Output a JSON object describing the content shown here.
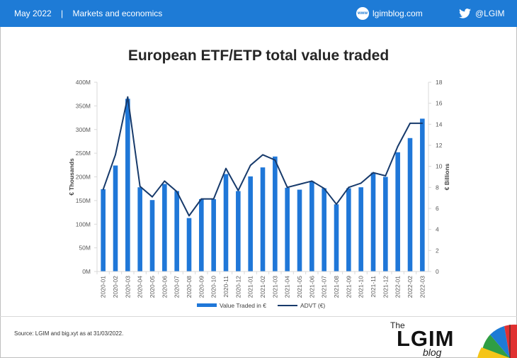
{
  "header": {
    "date": "May 2022",
    "separator": "|",
    "section": "Markets and economics",
    "blog_icon": "www",
    "blog": "lgimblog.com",
    "twitter": "@LGIM"
  },
  "footer": {
    "source": "Source: LGIM and big.xyt as at 31/03/2022.",
    "logo_the": "The",
    "logo_main": "LGIM",
    "logo_blog": "blog"
  },
  "colors": {
    "header": "#1e7bd6",
    "bars": "#1f77d8",
    "line": "#173a6b"
  },
  "chart_data": {
    "type": "bar",
    "title": "European ETF/ETP total value traded",
    "ylabel": "€ Thousands",
    "y2label": "€ Billions",
    "ylim": [
      0,
      400
    ],
    "y2lim": [
      0,
      18
    ],
    "yticks": [
      "0M",
      "50M",
      "100M",
      "150M",
      "200M",
      "250M",
      "300M",
      "350M",
      "400M"
    ],
    "y2ticks": [
      "0",
      "2",
      "4",
      "6",
      "8",
      "10",
      "12",
      "14",
      "16",
      "18"
    ],
    "categories": [
      "2020-01",
      "2020-02",
      "2020-03",
      "2020-04",
      "2020-05",
      "2020-06",
      "2020-07",
      "2020-08",
      "2020-09",
      "2020-10",
      "2020-11",
      "2020-12",
      "2021-01",
      "2021-02",
      "2021-03",
      "2021-04",
      "2021-05",
      "2021-06",
      "2021-07",
      "2021-08",
      "2021-09",
      "2021-10",
      "2021-11",
      "2021-12",
      "2022-01",
      "2022-02",
      "2022-03"
    ],
    "series": [
      {
        "name": "Value Traded in €",
        "kind": "bar",
        "axis": "left",
        "values": [
          174,
          224,
          365,
          178,
          151,
          185,
          170,
          113,
          153,
          153,
          206,
          170,
          201,
          220,
          243,
          177,
          173,
          191,
          176,
          142,
          176,
          178,
          209,
          200,
          252,
          282,
          323
        ]
      },
      {
        "name": "ADVT  (€)",
        "kind": "line",
        "axis": "right",
        "values": [
          7.8,
          11.1,
          16.6,
          8.1,
          7.1,
          8.6,
          7.6,
          5.3,
          6.9,
          6.9,
          9.8,
          7.7,
          10.1,
          11.1,
          10.6,
          8.0,
          8.3,
          8.6,
          7.9,
          6.4,
          8.0,
          8.4,
          9.4,
          9.1,
          11.9,
          14.1,
          14.1
        ]
      }
    ],
    "legend": "bottom"
  }
}
